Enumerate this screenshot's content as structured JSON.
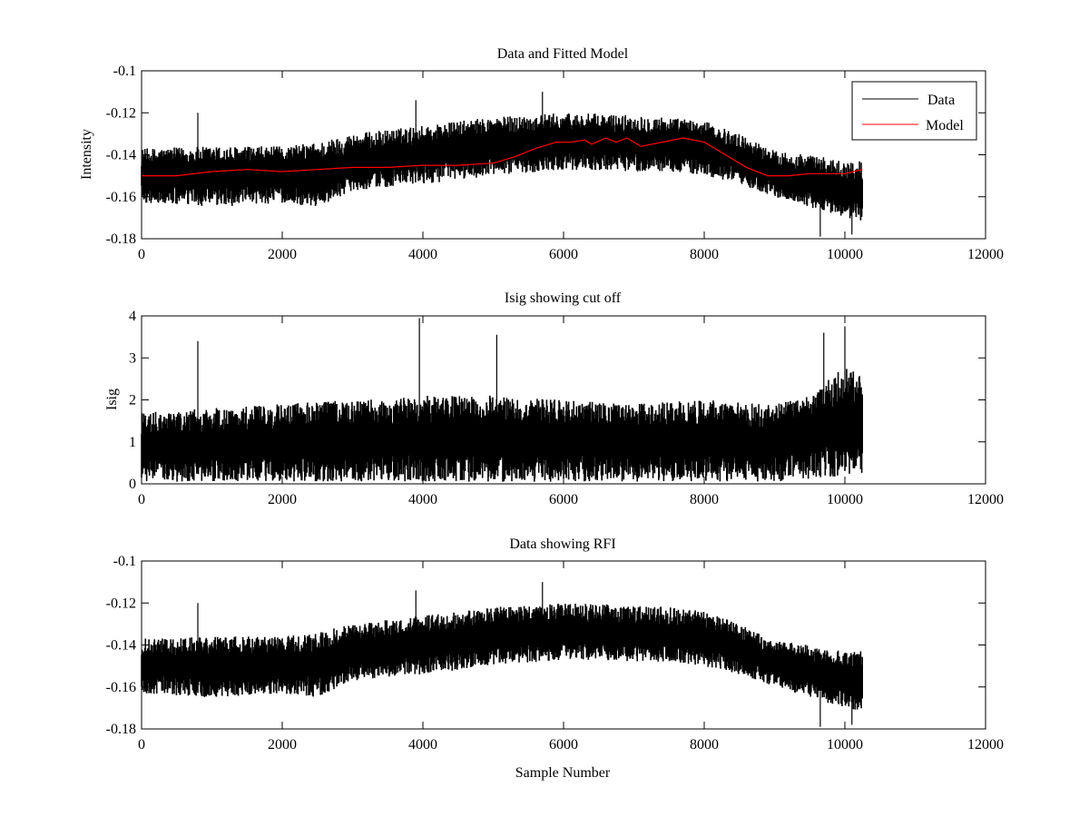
{
  "figure_colors": {
    "background": "#ffffff",
    "axes": "#000000",
    "data": "#000000",
    "model": "#ff0000"
  },
  "chart_data": [
    {
      "type": "line",
      "title": "Data and Fitted Model",
      "xlabel": "",
      "ylabel": "Intensity",
      "xlim": [
        0,
        12000
      ],
      "ylim": [
        -0.18,
        -0.1
      ],
      "xticks": [
        0,
        2000,
        4000,
        6000,
        8000,
        10000,
        12000
      ],
      "yticks": [
        -0.18,
        -0.16,
        -0.14,
        -0.12,
        -0.1
      ],
      "grid": false,
      "legend": {
        "position": "top-right",
        "entries": [
          "Data",
          "Model"
        ]
      },
      "x_end": 10250,
      "series": [
        {
          "name": "Data",
          "color": "#000000",
          "kind": "noisy_band",
          "envelope": {
            "x": [
              0,
              1000,
              2000,
              2500,
              3000,
              4000,
              5000,
              6000,
              7000,
              7500,
              8000,
              8500,
              9000,
              9500,
              10000,
              10250
            ],
            "low": [
              -0.163,
              -0.165,
              -0.163,
              -0.165,
              -0.157,
              -0.154,
              -0.15,
              -0.147,
              -0.148,
              -0.148,
              -0.15,
              -0.154,
              -0.16,
              -0.165,
              -0.17,
              -0.172
            ],
            "high": [
              -0.137,
              -0.136,
              -0.136,
              -0.134,
              -0.13,
              -0.126,
              -0.122,
              -0.12,
              -0.121,
              -0.122,
              -0.124,
              -0.13,
              -0.138,
              -0.14,
              -0.143,
              -0.143
            ]
          },
          "spikes": [
            {
              "x": 800,
              "value": -0.12
            },
            {
              "x": 3900,
              "value": -0.114
            },
            {
              "x": 5700,
              "value": -0.11
            },
            {
              "x": 9650,
              "value": -0.179
            },
            {
              "x": 10100,
              "value": -0.178
            }
          ]
        },
        {
          "name": "Model",
          "color": "#ff0000",
          "kind": "line",
          "x": [
            0,
            500,
            1000,
            1500,
            2000,
            2500,
            3000,
            3500,
            4000,
            4500,
            5000,
            5300,
            5600,
            5900,
            6100,
            6300,
            6400,
            6600,
            6750,
            6900,
            7100,
            7400,
            7700,
            8000,
            8300,
            8600,
            8900,
            9200,
            9500,
            10000,
            10250
          ],
          "values": [
            -0.15,
            -0.15,
            -0.148,
            -0.147,
            -0.148,
            -0.147,
            -0.146,
            -0.146,
            -0.145,
            -0.145,
            -0.144,
            -0.141,
            -0.137,
            -0.134,
            -0.134,
            -0.133,
            -0.135,
            -0.132,
            -0.134,
            -0.132,
            -0.136,
            -0.134,
            -0.132,
            -0.134,
            -0.14,
            -0.146,
            -0.15,
            -0.15,
            -0.149,
            -0.149,
            -0.147
          ]
        }
      ]
    },
    {
      "type": "line",
      "title": "Isig showing cut off",
      "xlabel": "",
      "ylabel": "Isig",
      "xlim": [
        0,
        12000
      ],
      "ylim": [
        0,
        4
      ],
      "xticks": [
        0,
        2000,
        4000,
        6000,
        8000,
        10000,
        12000
      ],
      "yticks": [
        0,
        1,
        2,
        3,
        4
      ],
      "grid": false,
      "x_end": 10250,
      "series": [
        {
          "name": "Isig",
          "color": "#000000",
          "kind": "noisy_band",
          "envelope": {
            "x": [
              0,
              1000,
              2000,
              3000,
              4000,
              5000,
              6000,
              7000,
              8000,
              9000,
              9500,
              10000,
              10250
            ],
            "low": [
              0.05,
              0.05,
              0.05,
              0.05,
              0.05,
              0.05,
              0.05,
              0.05,
              0.05,
              0.05,
              0.1,
              0.2,
              0.2
            ],
            "high": [
              1.7,
              1.8,
              1.9,
              2.0,
              2.1,
              2.1,
              2.0,
              1.9,
              2.0,
              1.9,
              2.1,
              2.8,
              2.6
            ]
          },
          "spikes": [
            {
              "x": 800,
              "value": 3.4
            },
            {
              "x": 3950,
              "value": 3.95
            },
            {
              "x": 5050,
              "value": 3.55
            },
            {
              "x": 9700,
              "value": 3.6
            },
            {
              "x": 10000,
              "value": 3.75
            }
          ]
        }
      ]
    },
    {
      "type": "line",
      "title": "Data showing RFI",
      "xlabel": "Sample Number",
      "ylabel": "",
      "xlim": [
        0,
        12000
      ],
      "ylim": [
        -0.18,
        -0.1
      ],
      "xticks": [
        0,
        2000,
        4000,
        6000,
        8000,
        10000,
        12000
      ],
      "yticks": [
        -0.18,
        -0.16,
        -0.14,
        -0.12,
        -0.1
      ],
      "grid": false,
      "x_end": 10250,
      "series": [
        {
          "name": "Data",
          "color": "#000000",
          "kind": "noisy_band",
          "envelope": {
            "x": [
              0,
              1000,
              2000,
              2500,
              3000,
              4000,
              5000,
              6000,
              7000,
              7500,
              8000,
              8500,
              9000,
              9500,
              10000,
              10250
            ],
            "low": [
              -0.163,
              -0.165,
              -0.163,
              -0.165,
              -0.157,
              -0.154,
              -0.15,
              -0.147,
              -0.148,
              -0.148,
              -0.15,
              -0.154,
              -0.16,
              -0.165,
              -0.17,
              -0.172
            ],
            "high": [
              -0.137,
              -0.136,
              -0.136,
              -0.134,
              -0.13,
              -0.126,
              -0.122,
              -0.12,
              -0.121,
              -0.122,
              -0.124,
              -0.13,
              -0.138,
              -0.14,
              -0.143,
              -0.143
            ]
          },
          "spikes": [
            {
              "x": 800,
              "value": -0.12
            },
            {
              "x": 3900,
              "value": -0.114
            },
            {
              "x": 5700,
              "value": -0.11
            },
            {
              "x": 9650,
              "value": -0.179
            },
            {
              "x": 10100,
              "value": -0.178
            }
          ]
        }
      ]
    }
  ]
}
